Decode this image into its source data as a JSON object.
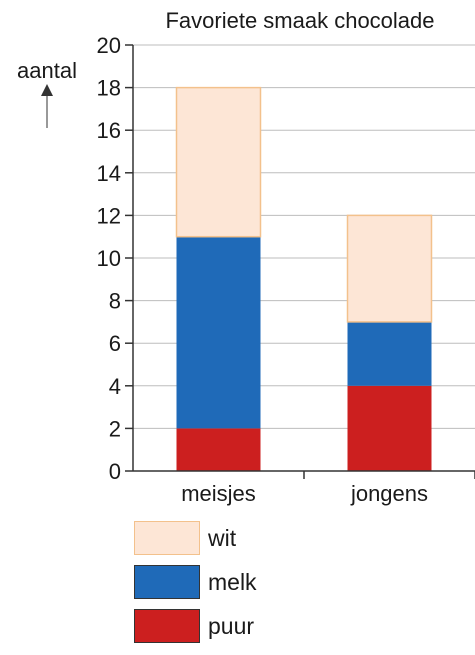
{
  "chart_data": {
    "type": "bar",
    "stacked": true,
    "title": "Favoriete smaak chocolade",
    "ylabel": "aantal",
    "xlabel": "",
    "categories": [
      "meisjes",
      "jongens"
    ],
    "series": [
      {
        "name": "puur",
        "values": [
          2,
          4
        ],
        "color": "#cc1f1f"
      },
      {
        "name": "melk",
        "values": [
          9,
          3
        ],
        "color": "#1f6ab8"
      },
      {
        "name": "wit",
        "values": [
          7,
          5
        ],
        "color": "#fde6d6"
      }
    ],
    "ylim": [
      0,
      20
    ],
    "yticks": [
      "0",
      "2",
      "4",
      "6",
      "8",
      "10",
      "12",
      "14",
      "16",
      "18",
      "20"
    ],
    "grid": true,
    "legend_position": "bottom-left",
    "legend_order": [
      "wit",
      "melk",
      "puur"
    ],
    "wit_border_color": "#f3c18c"
  }
}
